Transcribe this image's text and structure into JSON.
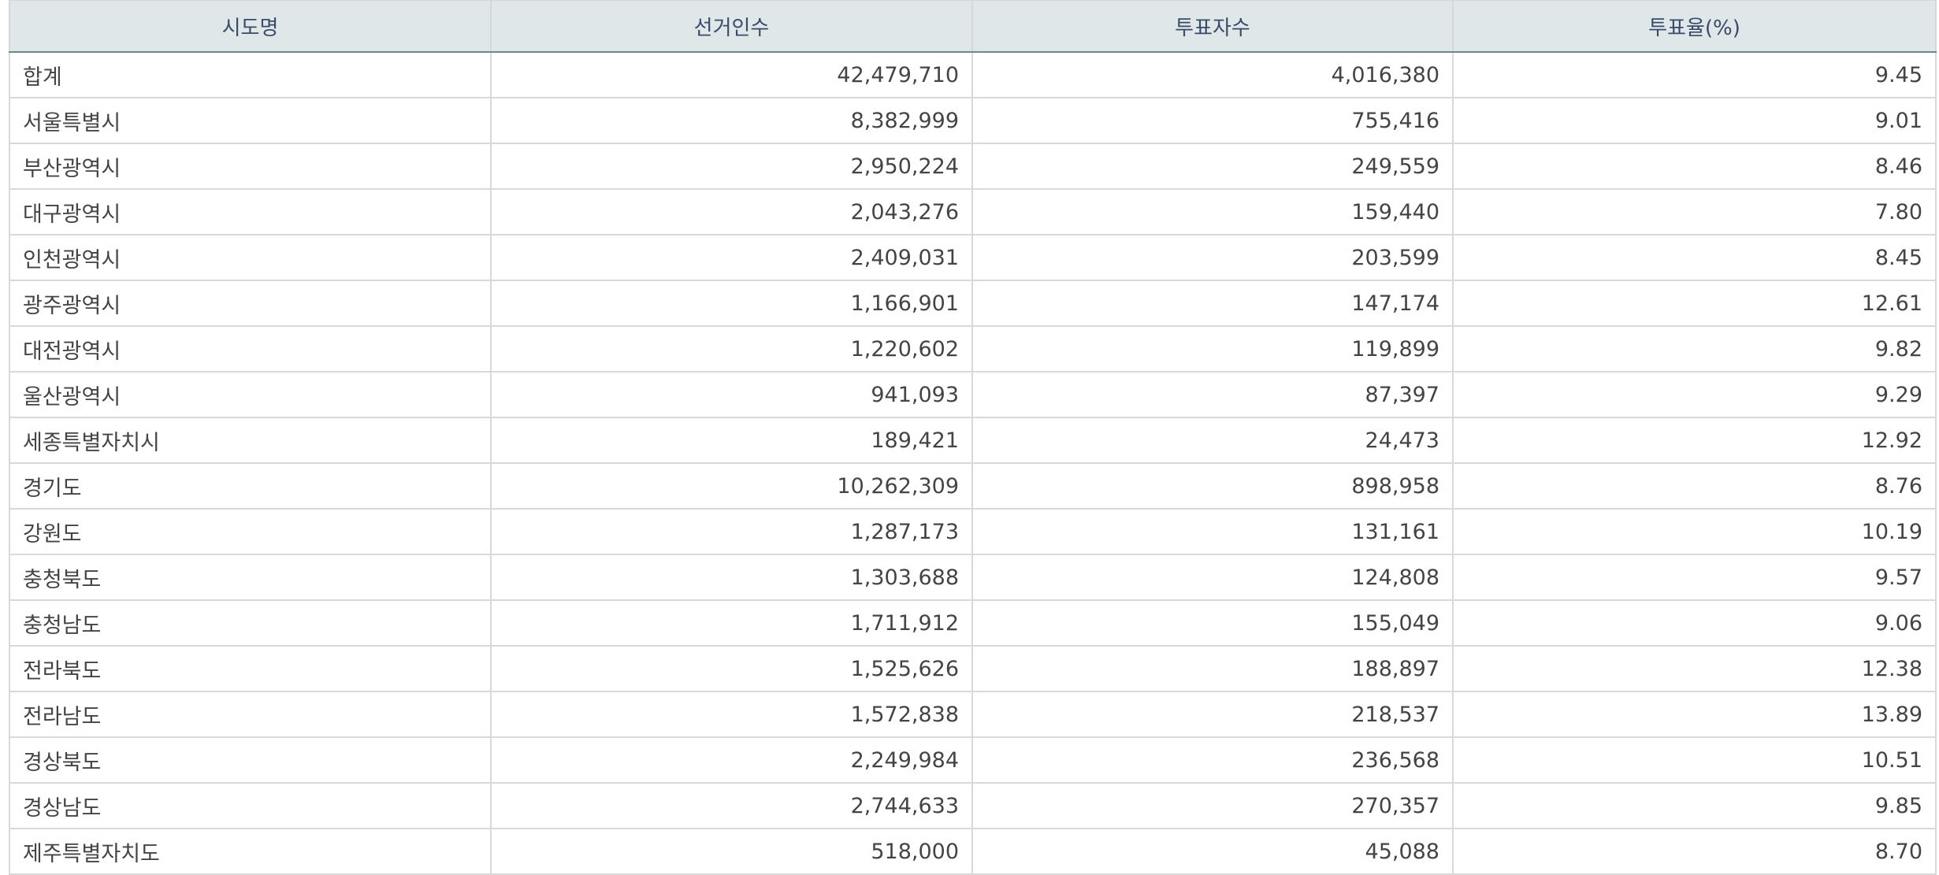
{
  "table": {
    "headers": [
      "시도명",
      "선거인수",
      "투표자수",
      "투표율(%)"
    ],
    "rows": [
      [
        "합계",
        "42,479,710",
        "4,016,380",
        "9.45"
      ],
      [
        "서울특별시",
        "8,382,999",
        "755,416",
        "9.01"
      ],
      [
        "부산광역시",
        "2,950,224",
        "249,559",
        "8.46"
      ],
      [
        "대구광역시",
        "2,043,276",
        "159,440",
        "7.80"
      ],
      [
        "인천광역시",
        "2,409,031",
        "203,599",
        "8.45"
      ],
      [
        "광주광역시",
        "1,166,901",
        "147,174",
        "12.61"
      ],
      [
        "대전광역시",
        "1,220,602",
        "119,899",
        "9.82"
      ],
      [
        "울산광역시",
        "941,093",
        "87,397",
        "9.29"
      ],
      [
        "세종특별자치시",
        "189,421",
        "24,473",
        "12.92"
      ],
      [
        "경기도",
        "10,262,309",
        "898,958",
        "8.76"
      ],
      [
        "강원도",
        "1,287,173",
        "131,161",
        "10.19"
      ],
      [
        "충청북도",
        "1,303,688",
        "124,808",
        "9.57"
      ],
      [
        "충청남도",
        "1,711,912",
        "155,049",
        "9.06"
      ],
      [
        "전라북도",
        "1,525,626",
        "188,897",
        "12.38"
      ],
      [
        "전라남도",
        "1,572,838",
        "218,537",
        "13.89"
      ],
      [
        "경상북도",
        "2,249,984",
        "236,568",
        "10.51"
      ],
      [
        "경상남도",
        "2,744,633",
        "270,357",
        "9.85"
      ],
      [
        "제주특별자치도",
        "518,000",
        "45,088",
        "8.70"
      ]
    ]
  }
}
